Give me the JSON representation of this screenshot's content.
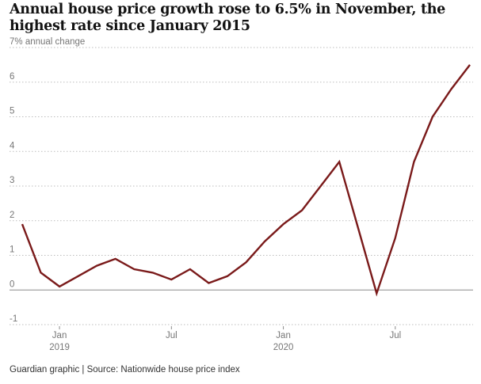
{
  "title": "Annual house price growth rose to 6.5% in November, the highest rate since January 2015",
  "source": "Guardian graphic | Source: Nationwide house price index",
  "colors": {
    "line": "#7a1a1a",
    "grid": "#bdbdbd",
    "axis_text": "#767676"
  },
  "chart_data": {
    "type": "line",
    "title": "Annual house price growth rose to 6.5% in November, the highest rate since January 2015",
    "ylabel": "% annual change",
    "ylim": [
      -1,
      7
    ],
    "yticks": [
      {
        "value": 7,
        "label": "7% annual change"
      },
      {
        "value": 6,
        "label": "6"
      },
      {
        "value": 5,
        "label": "5"
      },
      {
        "value": 4,
        "label": "4"
      },
      {
        "value": 3,
        "label": "3"
      },
      {
        "value": 2,
        "label": "2"
      },
      {
        "value": 1,
        "label": "1"
      },
      {
        "value": 0,
        "label": "0"
      },
      {
        "value": -1,
        "label": "-1"
      }
    ],
    "xticks": [
      {
        "date": "2019-01",
        "label": "Jan",
        "sublabel": "2019"
      },
      {
        "date": "2019-07",
        "label": "Jul",
        "sublabel": ""
      },
      {
        "date": "2020-01",
        "label": "Jan",
        "sublabel": "2020"
      },
      {
        "date": "2020-07",
        "label": "Jul",
        "sublabel": ""
      }
    ],
    "grid": true,
    "series": [
      {
        "x": [
          "2018-11",
          "2018-12",
          "2019-01",
          "2019-02",
          "2019-03",
          "2019-04",
          "2019-05",
          "2019-06",
          "2019-07",
          "2019-08",
          "2019-09",
          "2019-10",
          "2019-11",
          "2019-12",
          "2020-01",
          "2020-02",
          "2020-03",
          "2020-04",
          "2020-05",
          "2020-06",
          "2020-07",
          "2020-08",
          "2020-09",
          "2020-10",
          "2020-11"
        ],
        "values": [
          1.9,
          0.5,
          0.1,
          0.4,
          0.7,
          0.9,
          0.6,
          0.5,
          0.3,
          0.6,
          0.2,
          0.4,
          0.8,
          1.4,
          1.9,
          2.3,
          3.0,
          3.7,
          1.8,
          -0.1,
          1.5,
          3.7,
          5.0,
          5.8,
          6.5
        ]
      }
    ]
  }
}
